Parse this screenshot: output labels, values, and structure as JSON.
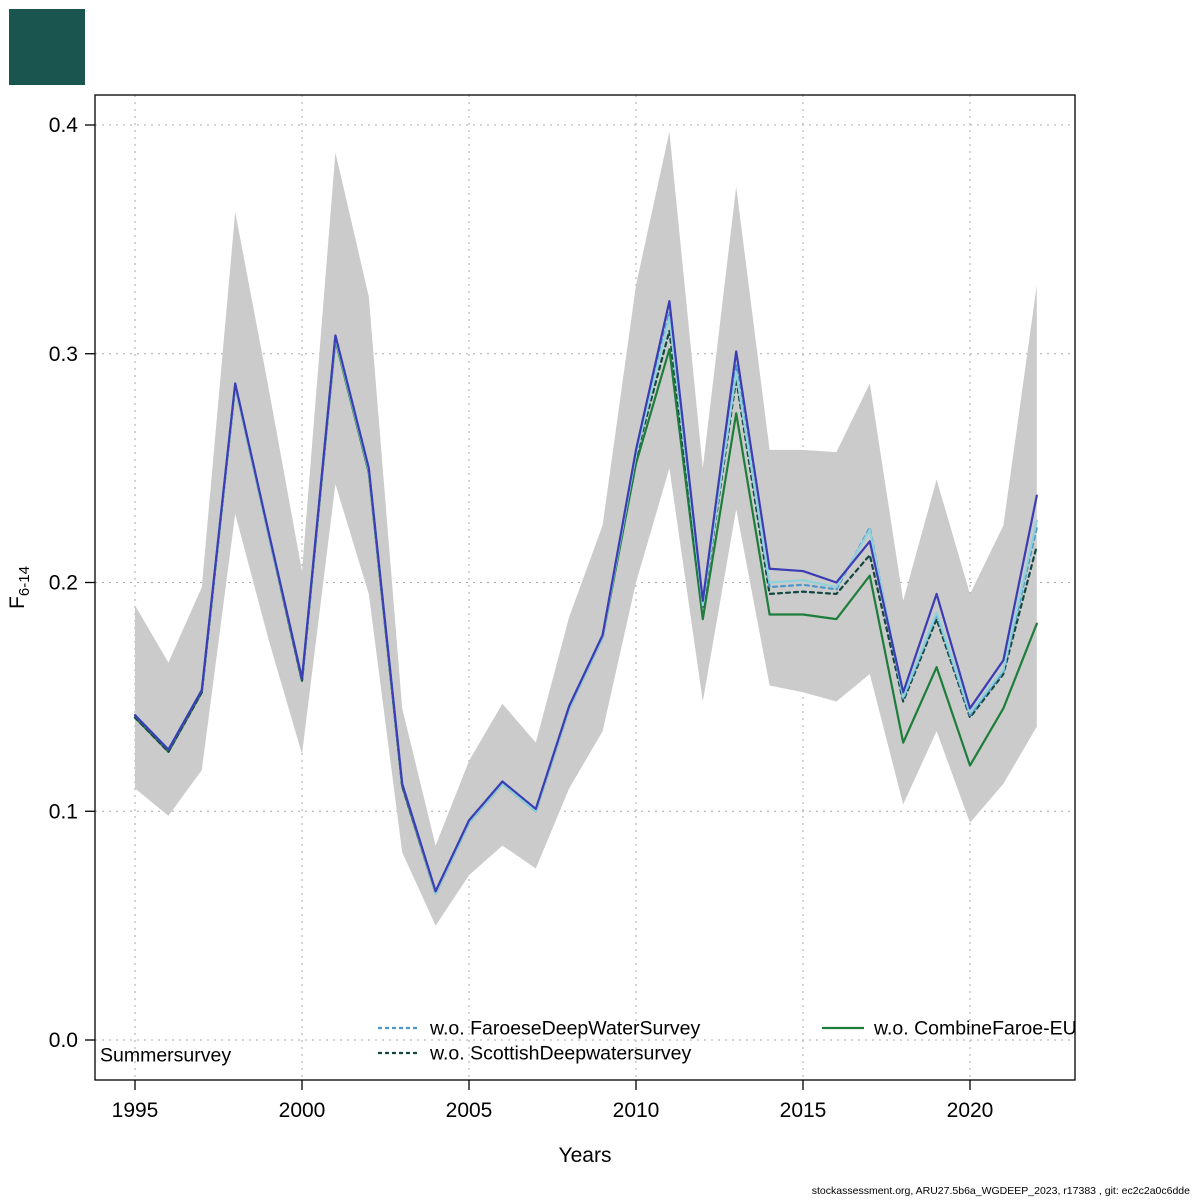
{
  "decor": {
    "corner_color": "#1a564f"
  },
  "footer": "stockassessment.org, ARU27.5b6a_WGDEEP_2023, r17383 , git: ec2c2a0c6dde",
  "chart_data": {
    "type": "line",
    "title": "",
    "xlabel": "Years",
    "ylabel": "F",
    "ylabel_sub": "6-14",
    "grid": "dotted",
    "grid_color": "#a8a8a8",
    "legend_position": "bottom-inside",
    "xlim": [
      1993.8,
      2023.2
    ],
    "ylim": [
      -0.017,
      0.413
    ],
    "xticks": [
      1995,
      2000,
      2005,
      2010,
      2015,
      2020
    ],
    "ytick_labels": [
      "0.0",
      "0.1",
      "0.2",
      "0.3",
      "0.4"
    ],
    "ytick_values": [
      0,
      0.1,
      0.2,
      0.3,
      0.4
    ],
    "x": [
      1995,
      1996,
      1997,
      1998,
      1999,
      2000,
      2001,
      2002,
      2003,
      2004,
      2005,
      2006,
      2007,
      2008,
      2009,
      2010,
      2011,
      2012,
      2013,
      2014,
      2015,
      2016,
      2017,
      2018,
      2019,
      2020,
      2021,
      2022
    ],
    "band": {
      "color": "#cbcbcb",
      "lower": [
        0.11,
        0.098,
        0.118,
        0.23,
        0.175,
        0.125,
        0.243,
        0.195,
        0.082,
        0.05,
        0.072,
        0.085,
        0.075,
        0.11,
        0.135,
        0.2,
        0.25,
        0.148,
        0.232,
        0.155,
        0.152,
        0.148,
        0.16,
        0.103,
        0.135,
        0.095,
        0.112,
        0.137
      ],
      "upper": [
        0.19,
        0.165,
        0.198,
        0.362,
        0.285,
        0.205,
        0.388,
        0.325,
        0.145,
        0.085,
        0.122,
        0.147,
        0.13,
        0.185,
        0.225,
        0.33,
        0.397,
        0.25,
        0.373,
        0.258,
        0.258,
        0.257,
        0.287,
        0.192,
        0.245,
        0.195,
        0.225,
        0.33
      ]
    },
    "series": [
      {
        "id": "wo-combinefaroe-eu",
        "label": "w.o. CombineFaroe-EU",
        "color": "#1e7d3a",
        "dash": "solid",
        "values": [
          0.141,
          0.126,
          0.152,
          0.286,
          0.221,
          0.157,
          0.306,
          0.248,
          0.111,
          0.064,
          0.095,
          0.112,
          0.1,
          0.145,
          0.176,
          0.252,
          0.302,
          0.184,
          0.274,
          0.186,
          0.186,
          0.184,
          0.203,
          0.13,
          0.163,
          0.12,
          0.145,
          0.182
        ]
      },
      {
        "id": "wo-scottishdeepwatersurvey",
        "label": "w.o. ScottishDeepwatersurvey",
        "color": "#12483f",
        "dash": "dashed",
        "values": [
          0.141,
          0.126,
          0.152,
          0.286,
          0.221,
          0.157,
          0.307,
          0.249,
          0.111,
          0.064,
          0.095,
          0.112,
          0.1,
          0.145,
          0.176,
          0.255,
          0.31,
          0.189,
          0.289,
          0.195,
          0.196,
          0.195,
          0.212,
          0.148,
          0.184,
          0.141,
          0.16,
          0.216
        ]
      },
      {
        "id": "wo-faroesedeepwatersurvey",
        "label": "w.o. FaroeseDeepWaterSurvey",
        "color": "#4f96c8",
        "dash": "dashed",
        "values": [
          0.142,
          0.127,
          0.153,
          0.287,
          0.222,
          0.158,
          0.308,
          0.25,
          0.112,
          0.065,
          0.096,
          0.113,
          0.101,
          0.146,
          0.177,
          0.257,
          0.318,
          0.191,
          0.295,
          0.198,
          0.199,
          0.197,
          0.224,
          0.149,
          0.186,
          0.142,
          0.161,
          0.224
        ]
      },
      {
        "id": "summersurvey",
        "label": "Summersurvey",
        "color": "#8fd2dc",
        "dash": "solid",
        "values": [
          0.142,
          0.127,
          0.153,
          0.286,
          0.221,
          0.158,
          0.307,
          0.249,
          0.112,
          0.064,
          0.095,
          0.112,
          0.1,
          0.145,
          0.176,
          0.256,
          0.316,
          0.19,
          0.292,
          0.2,
          0.201,
          0.198,
          0.223,
          0.15,
          0.187,
          0.143,
          0.162,
          0.227
        ]
      },
      {
        "id": "base",
        "label": "",
        "color": "#3c3cb4",
        "dash": "solid",
        "values": [
          0.142,
          0.127,
          0.153,
          0.287,
          0.222,
          0.158,
          0.308,
          0.25,
          0.112,
          0.065,
          0.096,
          0.113,
          0.101,
          0.146,
          0.177,
          0.258,
          0.323,
          0.192,
          0.301,
          0.206,
          0.205,
          0.2,
          0.218,
          0.152,
          0.195,
          0.145,
          0.166,
          0.238
        ]
      }
    ],
    "legend": [
      {
        "label": "Summersurvey",
        "series": "summersurvey",
        "sample": false
      },
      {
        "label": "w.o. FaroeseDeepWaterSurvey",
        "series": "wo-faroesedeepwatersurvey",
        "sample": true
      },
      {
        "label": "w.o. ScottishDeepwatersurvey",
        "series": "wo-scottishdeepwatersurvey",
        "sample": true
      },
      {
        "label": "w.o. CombineFaroe-EU",
        "series": "wo-combinefaroe-eu",
        "sample": true
      }
    ]
  }
}
